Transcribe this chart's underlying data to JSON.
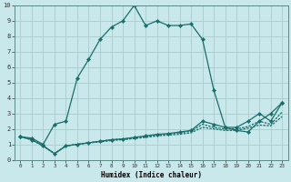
{
  "xlabel": "Humidex (Indice chaleur)",
  "xlim": [
    -0.5,
    23.5
  ],
  "ylim": [
    0,
    10
  ],
  "background_color": "#c8e8ec",
  "grid_color": "#aacccc",
  "line_color": "#1a6e6a",
  "line1_x": [
    0,
    1,
    2,
    3,
    4,
    5,
    6,
    7,
    8,
    9,
    10,
    11,
    12,
    13,
    14,
    15,
    16,
    17,
    18,
    19,
    20,
    21,
    22,
    23
  ],
  "line1_y": [
    1.5,
    1.4,
    1.0,
    2.3,
    2.5,
    5.3,
    6.5,
    7.8,
    8.6,
    9.0,
    10.0,
    8.7,
    9.0,
    8.7,
    8.7,
    8.8,
    7.8,
    4.5,
    2.1,
    1.9,
    1.8,
    2.5,
    3.0,
    3.7
  ],
  "line2_x": [
    0,
    1,
    2,
    3,
    4,
    5,
    6,
    7,
    8,
    9,
    10,
    11,
    12,
    13,
    14,
    15,
    16,
    17,
    18,
    19,
    20,
    21,
    22,
    23
  ],
  "line2_y": [
    1.5,
    1.3,
    0.9,
    0.4,
    0.9,
    1.0,
    1.1,
    1.2,
    1.3,
    1.35,
    1.45,
    1.55,
    1.65,
    1.7,
    1.8,
    1.9,
    2.5,
    2.3,
    2.1,
    2.1,
    2.5,
    3.0,
    2.5,
    3.7
  ],
  "line3_x": [
    0,
    1,
    2,
    3,
    4,
    5,
    6,
    7,
    8,
    9,
    10,
    11,
    12,
    13,
    14,
    15,
    16,
    17,
    18,
    19,
    20,
    21,
    22,
    23
  ],
  "line3_y": [
    1.5,
    1.3,
    0.9,
    0.4,
    0.9,
    1.0,
    1.1,
    1.2,
    1.3,
    1.35,
    1.4,
    1.5,
    1.6,
    1.65,
    1.75,
    1.85,
    2.3,
    2.1,
    2.0,
    2.0,
    2.15,
    2.5,
    2.3,
    3.1
  ],
  "line4_x": [
    0,
    1,
    2,
    3,
    4,
    5,
    6,
    7,
    8,
    9,
    10,
    11,
    12,
    13,
    14,
    15,
    16,
    17,
    18,
    19,
    20,
    21,
    22,
    23
  ],
  "line4_y": [
    1.5,
    1.3,
    0.9,
    0.4,
    0.9,
    1.0,
    1.1,
    1.15,
    1.25,
    1.3,
    1.38,
    1.45,
    1.55,
    1.6,
    1.65,
    1.75,
    2.1,
    2.0,
    1.9,
    1.9,
    2.05,
    2.25,
    2.2,
    2.8
  ]
}
